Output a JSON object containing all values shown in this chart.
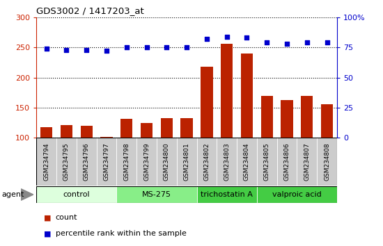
{
  "title": "GDS3002 / 1417203_at",
  "samples": [
    "GSM234794",
    "GSM234795",
    "GSM234796",
    "GSM234797",
    "GSM234798",
    "GSM234799",
    "GSM234800",
    "GSM234801",
    "GSM234802",
    "GSM234803",
    "GSM234804",
    "GSM234805",
    "GSM234806",
    "GSM234807",
    "GSM234808"
  ],
  "counts": [
    118,
    121,
    120,
    102,
    131,
    125,
    133,
    133,
    218,
    256,
    240,
    170,
    162,
    170,
    156
  ],
  "percentiles": [
    74,
    73,
    73,
    72,
    75,
    75,
    75,
    75,
    82,
    84,
    83,
    79,
    78,
    79,
    79
  ],
  "bar_color": "#bb2200",
  "dot_color": "#0000cc",
  "ylim_left": [
    100,
    300
  ],
  "ylim_right": [
    0,
    100
  ],
  "yticks_left": [
    100,
    150,
    200,
    250,
    300
  ],
  "yticks_right": [
    0,
    25,
    50,
    75,
    100
  ],
  "ytick_labels_right": [
    "0",
    "25",
    "50",
    "75",
    "100%"
  ],
  "groups": [
    {
      "label": "control",
      "start": 0,
      "end": 3,
      "color": "#ddffdd"
    },
    {
      "label": "MS-275",
      "start": 4,
      "end": 7,
      "color": "#88ee88"
    },
    {
      "label": "trichostatin A",
      "start": 8,
      "end": 10,
      "color": "#44cc44"
    },
    {
      "label": "valproic acid",
      "start": 11,
      "end": 14,
      "color": "#44cc44"
    }
  ],
  "agent_label": "agent",
  "legend_items": [
    {
      "label": "count",
      "color": "#bb2200"
    },
    {
      "label": "percentile rank within the sample",
      "color": "#0000cc"
    }
  ],
  "axis_color_left": "#cc2200",
  "axis_color_right": "#0000cc",
  "bar_width": 0.6,
  "xlim": [
    -0.5,
    14.5
  ]
}
